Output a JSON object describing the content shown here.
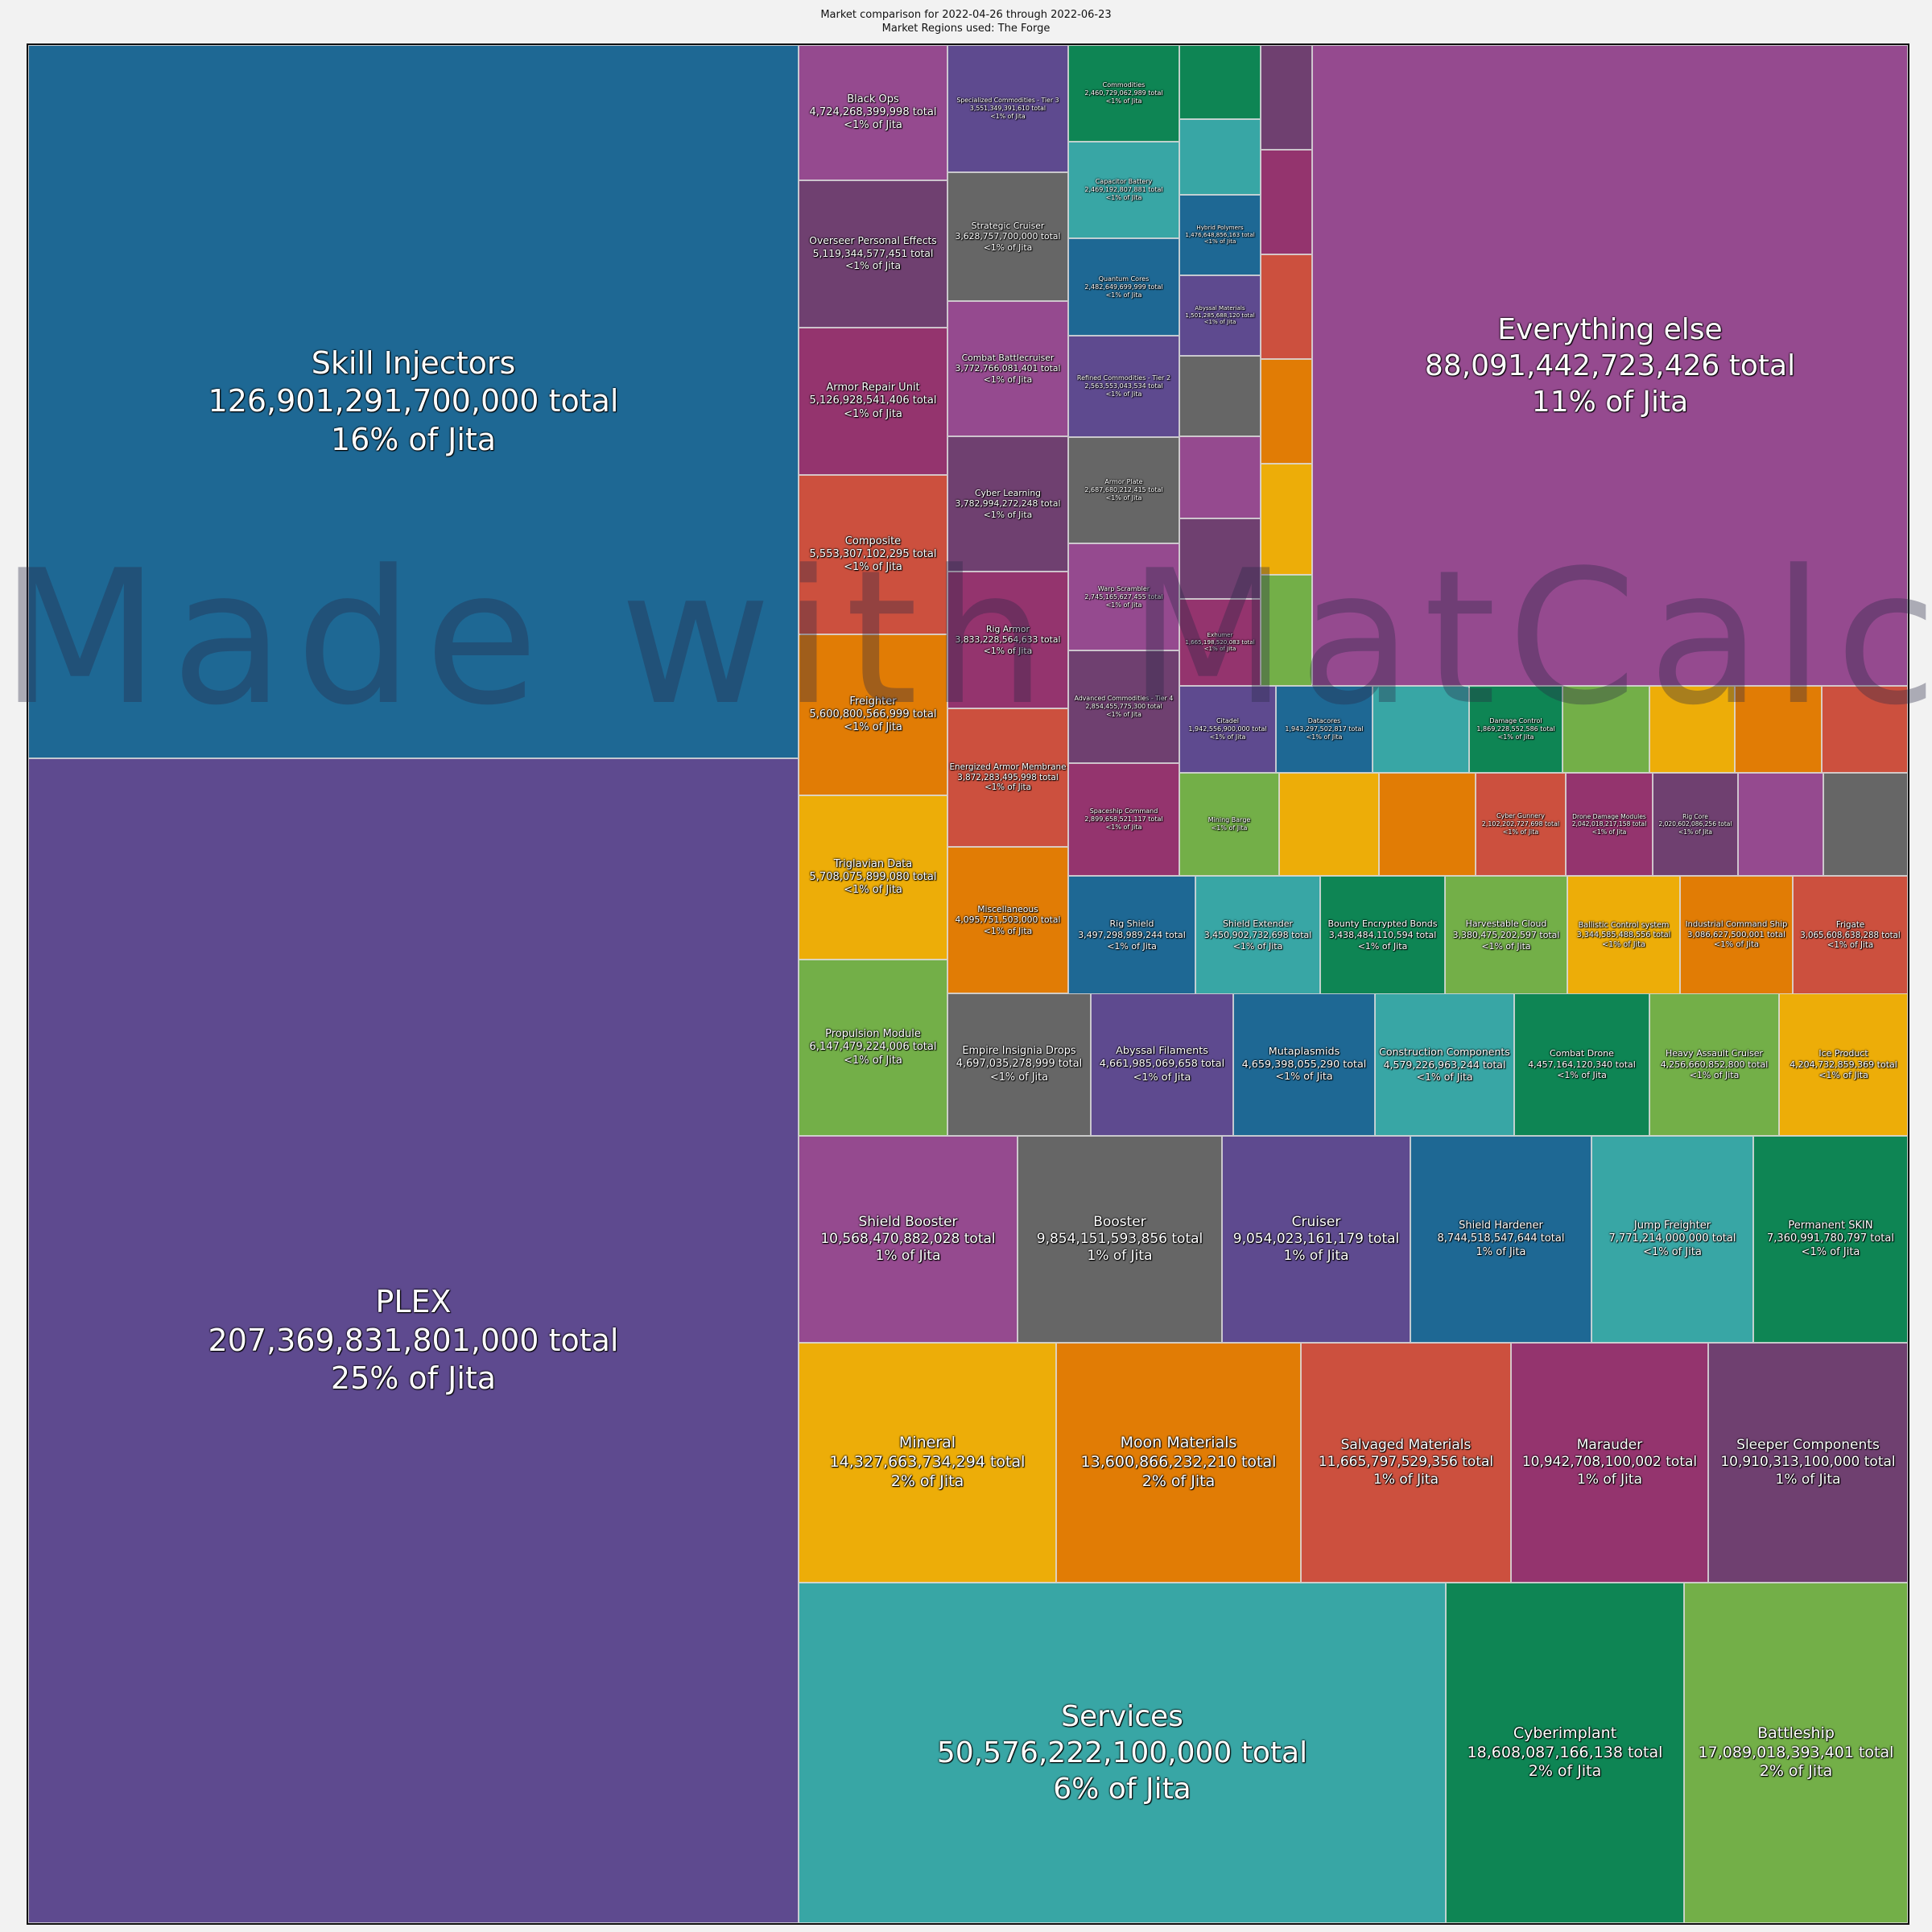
{
  "header": {
    "title": "Market comparison for 2022-04-26 through 2022-06-23",
    "subtitle": "Market Regions used: The Forge"
  },
  "watermark": "Made with MatCalc",
  "chart_data": {
    "type": "treemap",
    "total_unit": "ISK",
    "comparison": "Jita",
    "items": [
      {
        "name": "PLEX",
        "total": "207,369,831,801,000",
        "share": "25% of Jita",
        "color": "#5e4a8f"
      },
      {
        "name": "Skill Injectors",
        "total": "126,901,291,700,000",
        "share": "16% of Jita",
        "color": "#1e6894"
      },
      {
        "name": "Everything else",
        "total": "88,091,442,723,426",
        "share": "11% of Jita",
        "color": "#954a8f"
      },
      {
        "name": "Services",
        "total": "50,576,222,100,000",
        "share": "6% of Jita",
        "color": "#38a6a5"
      },
      {
        "name": "Cyberimplant",
        "total": "18,608,087,166,138",
        "share": "2% of Jita",
        "color": "#0e8554"
      },
      {
        "name": "Battleship",
        "total": "17,089,018,393,401",
        "share": "2% of Jita",
        "color": "#73af48"
      },
      {
        "name": "Mineral",
        "total": "14,327,663,734,294",
        "share": "2% of Jita",
        "color": "#edad08"
      },
      {
        "name": "Moon Materials",
        "total": "13,600,866,232,210",
        "share": "2% of Jita",
        "color": "#e17c05"
      },
      {
        "name": "Salvaged Materials",
        "total": "11,665,797,529,356",
        "share": "1% of Jita",
        "color": "#cc503e"
      },
      {
        "name": "Marauder",
        "total": "10,942,708,100,002",
        "share": "1% of Jita",
        "color": "#94346e"
      },
      {
        "name": "Sleeper Components",
        "total": "10,910,313,100,000",
        "share": "1% of Jita",
        "color": "#6f4070"
      },
      {
        "name": "Shield Booster",
        "total": "10,568,470,882,028",
        "share": "1% of Jita",
        "color": "#954a8f"
      },
      {
        "name": "Booster",
        "total": "9,854,151,593,856",
        "share": "1% of Jita",
        "color": "#666666"
      },
      {
        "name": "Cruiser",
        "total": "9,054,023,161,179",
        "share": "1% of Jita",
        "color": "#5e4a8f"
      },
      {
        "name": "Shield Hardener",
        "total": "8,744,518,547,644",
        "share": "1% of Jita",
        "color": "#1e6894"
      },
      {
        "name": "Jump Freighter",
        "total": "7,771,214,000,000",
        "share": "<1% of Jita",
        "color": "#38a6a5"
      },
      {
        "name": "Permanent SKIN",
        "total": "7,360,991,780,797",
        "share": "<1% of Jita",
        "color": "#0e8554"
      },
      {
        "name": "Propulsion Module",
        "total": "6,147,479,224,006",
        "share": "<1% of Jita",
        "color": "#73af48"
      },
      {
        "name": "Triglavian Data",
        "total": "5,708,075,899,080",
        "share": "<1% of Jita",
        "color": "#edad08"
      },
      {
        "name": "Freighter",
        "total": "5,600,800,566,999",
        "share": "<1% of Jita",
        "color": "#e17c05"
      },
      {
        "name": "Composite",
        "total": "5,553,307,102,295",
        "share": "<1% of Jita",
        "color": "#cc503e"
      },
      {
        "name": "Armor Repair Unit",
        "total": "5,126,928,541,406",
        "share": "<1% of Jita",
        "color": "#94346e"
      },
      {
        "name": "Overseer Personal Effects",
        "total": "5,119,344,577,451",
        "share": "<1% of Jita",
        "color": "#6f4070"
      },
      {
        "name": "Black Ops",
        "total": "4,724,268,399,998",
        "share": "<1% of Jita",
        "color": "#954a8f"
      },
      {
        "name": "Empire Insignia Drops",
        "total": "4,697,035,278,999",
        "share": "<1% of Jita",
        "color": "#666666"
      },
      {
        "name": "Abyssal Filaments",
        "total": "4,661,985,069,658",
        "share": "<1% of Jita",
        "color": "#5e4a8f"
      },
      {
        "name": "Mutaplasmids",
        "total": "4,659,398,055,290",
        "share": "<1% of Jita",
        "color": "#1e6894"
      },
      {
        "name": "Construction Components",
        "total": "4,579,226,963,244",
        "share": "<1% of Jita",
        "color": "#38a6a5"
      },
      {
        "name": "Combat Drone",
        "total": "4,457,164,120,340",
        "share": "<1% of Jita",
        "color": "#0e8554"
      },
      {
        "name": "Heavy Assault Cruiser",
        "total": "4,256,660,852,800",
        "share": "<1% of Jita",
        "color": "#73af48"
      },
      {
        "name": "Ice Product",
        "total": "4,204,732,859,369",
        "share": "<1% of Jita",
        "color": "#edad08"
      },
      {
        "name": "Miscellaneous",
        "total": "4,095,751,503,000",
        "share": "<1% of Jita",
        "color": "#e17c05"
      },
      {
        "name": "Energized Armor Membrane",
        "total": "3,872,283,495,998",
        "share": "<1% of Jita",
        "color": "#cc503e"
      },
      {
        "name": "Rig Armor",
        "total": "3,833,228,564,633",
        "share": "<1% of Jita",
        "color": "#94346e"
      },
      {
        "name": "Cyber Learning",
        "total": "3,782,994,272,248",
        "share": "<1% of Jita",
        "color": "#6f4070"
      },
      {
        "name": "Combat Battlecruiser",
        "total": "3,772,766,081,401",
        "share": "<1% of Jita",
        "color": "#954a8f"
      },
      {
        "name": "Strategic Cruiser",
        "total": "3,628,757,700,000",
        "share": "<1% of Jita",
        "color": "#666666"
      },
      {
        "name": "Specialized Commodities - Tier 3",
        "total": "3,551,349,391,610",
        "share": "<1% of Jita",
        "color": "#5e4a8f"
      },
      {
        "name": "Rig Shield",
        "total": "3,497,298,989,244",
        "share": "<1% of Jita",
        "color": "#1e6894"
      },
      {
        "name": "Shield Extender",
        "total": "3,450,902,732,698",
        "share": "<1% of Jita",
        "color": "#38a6a5"
      },
      {
        "name": "Bounty Encrypted Bonds",
        "total": "3,438,484,110,594",
        "share": "<1% of Jita",
        "color": "#0e8554"
      },
      {
        "name": "Harvestable Cloud",
        "total": "3,380,475,202,597",
        "share": "<1% of Jita",
        "color": "#73af48"
      },
      {
        "name": "Ballistic Control system",
        "total": "3,344,585,488,556",
        "share": "<1% of Jita",
        "color": "#edad08"
      },
      {
        "name": "Industrial Command Ship",
        "total": "3,086,627,500,001",
        "share": "<1% of Jita",
        "color": "#e17c05"
      },
      {
        "name": "Frigate",
        "total": "3,065,608,638,288",
        "share": "<1% of Jita",
        "color": "#cc503e"
      },
      {
        "name": "Spaceship Command",
        "total": "2,899,658,521,117",
        "share": "<1% of Jita",
        "color": "#94346e"
      },
      {
        "name": "Advanced Commodities - Tier 4",
        "total": "2,854,455,775,300",
        "share": "<1% of Jita",
        "color": "#6f4070"
      },
      {
        "name": "Warp Scrambler",
        "total": "2,745,165,627,455",
        "share": "<1% of Jita",
        "color": "#954a8f"
      },
      {
        "name": "Armor Plate",
        "total": "2,687,680,212,415",
        "share": "<1% of Jita",
        "color": "#666666"
      },
      {
        "name": "Refined Commodities - Tier 2",
        "total": "2,563,553,043,534",
        "share": "<1% of Jita",
        "color": "#5e4a8f"
      },
      {
        "name": "Quantum Cores",
        "total": "2,482,649,699,999",
        "share": "<1% of Jita",
        "color": "#1e6894"
      },
      {
        "name": "Capacitor Battery",
        "total": "2,469,192,807,881",
        "share": "<1% of Jita",
        "color": "#38a6a5"
      },
      {
        "name": "Commodities",
        "total": "2,460,729,062,989",
        "share": "<1% of Jita",
        "color": "#0e8554"
      },
      {
        "name": "Citadel",
        "total": "1,942,556,900,000",
        "share": "<1% of Jita",
        "color": "#5e4a8f"
      },
      {
        "name": "Datacores",
        "total": "1,943,297,502,817",
        "share": "<1% of Jita",
        "color": "#1e6894"
      },
      {
        "name": "Damage Control",
        "total": "1,869,228,552,586",
        "share": "<1% of Jita",
        "color": "#0e8554"
      },
      {
        "name": "Mining Barge",
        "total": "",
        "share": "<1% of Jita",
        "color": "#73af48"
      },
      {
        "name": "Drone Damage Modules",
        "total": "2,042,018,217,158",
        "share": "<1% of Jita",
        "color": "#94346e"
      },
      {
        "name": "Rig Core",
        "total": "2,020,602,086,256",
        "share": "<1% of Jita",
        "color": "#6f4070"
      },
      {
        "name": "Cyber Gunnery",
        "total": "2,102,202,727,698",
        "share": "<1% of Jita",
        "color": "#cc503e"
      },
      {
        "name": "Exhumer",
        "total": "1,665,198,520,083",
        "share": "<1% of Jita",
        "color": "#94346e"
      },
      {
        "name": "Hybrid Polymers",
        "total": "1,476,648,856,163",
        "share": "<1% of Jita",
        "color": "#1e6894"
      },
      {
        "name": "Abyssal Materials",
        "total": "1,501,285,688,120",
        "share": "<1% of Jita",
        "color": "#5e4a8f"
      }
    ]
  }
}
